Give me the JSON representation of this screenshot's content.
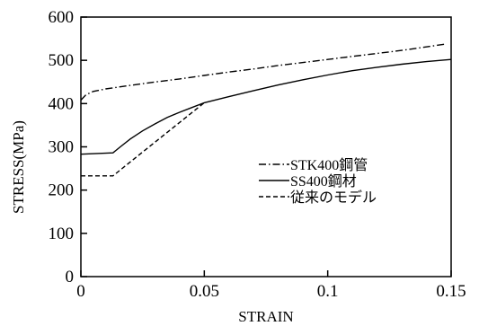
{
  "chart_data": {
    "type": "line",
    "xlabel": "STRAIN",
    "ylabel": "STRESS(MPa)",
    "xlim": [
      0,
      0.15
    ],
    "ylim": [
      0,
      600
    ],
    "x_ticks": [
      0,
      0.05,
      0.1,
      0.15
    ],
    "x_tick_labels": [
      "0",
      "0.05",
      "0.1",
      "0.15"
    ],
    "y_ticks": [
      0,
      100,
      200,
      300,
      400,
      500,
      600
    ],
    "y_tick_labels": [
      "0",
      "100",
      "200",
      "300",
      "400",
      "500",
      "600"
    ],
    "grid": false,
    "legend_position": "center-right",
    "series": [
      {
        "name": "STK400鋼管",
        "dash": "dash-dot",
        "color": "#000000",
        "points": [
          [
            0,
            408
          ],
          [
            0.002,
            420
          ],
          [
            0.005,
            428
          ],
          [
            0.01,
            434
          ],
          [
            0.02,
            442
          ],
          [
            0.03,
            450
          ],
          [
            0.04,
            457
          ],
          [
            0.05,
            465
          ],
          [
            0.06,
            473
          ],
          [
            0.07,
            480
          ],
          [
            0.08,
            488
          ],
          [
            0.09,
            495
          ],
          [
            0.1,
            502
          ],
          [
            0.11,
            509
          ],
          [
            0.12,
            516
          ],
          [
            0.13,
            523
          ],
          [
            0.14,
            531
          ],
          [
            0.148,
            538
          ]
        ]
      },
      {
        "name": "SS400鋼材",
        "dash": "solid",
        "color": "#000000",
        "points": [
          [
            0,
            283
          ],
          [
            0.013,
            286
          ],
          [
            0.016,
            300
          ],
          [
            0.02,
            318
          ],
          [
            0.025,
            337
          ],
          [
            0.03,
            353
          ],
          [
            0.035,
            368
          ],
          [
            0.04,
            380
          ],
          [
            0.045,
            391
          ],
          [
            0.05,
            402
          ],
          [
            0.06,
            416
          ],
          [
            0.07,
            430
          ],
          [
            0.08,
            443
          ],
          [
            0.09,
            455
          ],
          [
            0.1,
            466
          ],
          [
            0.11,
            476
          ],
          [
            0.12,
            484
          ],
          [
            0.13,
            491
          ],
          [
            0.14,
            497
          ],
          [
            0.15,
            502
          ]
        ]
      },
      {
        "name": "従来のモデル",
        "dash": "dashed",
        "color": "#000000",
        "points": [
          [
            0,
            233
          ],
          [
            0.013,
            233
          ],
          [
            0.05,
            402
          ]
        ]
      }
    ]
  }
}
